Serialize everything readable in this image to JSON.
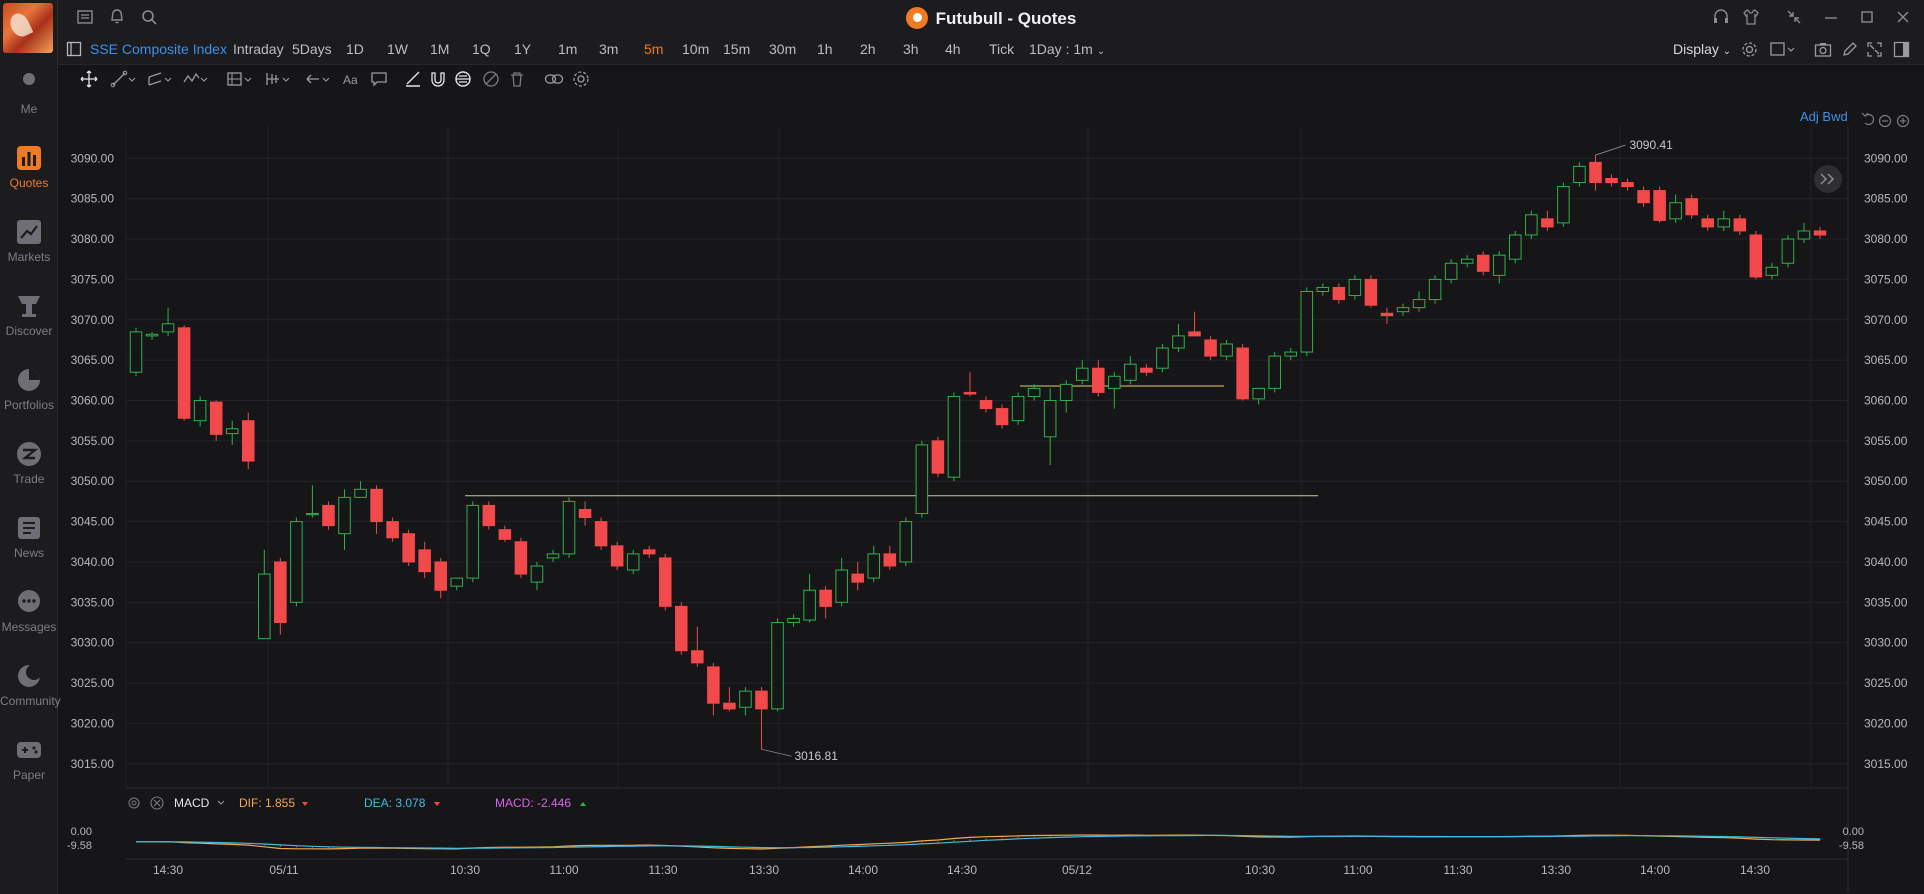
{
  "window": {
    "title": "Futubull - Quotes"
  },
  "sidebar": {
    "items": [
      {
        "label": "Me",
        "icon": "person-icon"
      },
      {
        "label": "Quotes",
        "icon": "bar-chart-icon",
        "active": true
      },
      {
        "label": "Markets",
        "icon": "trend-chart-icon"
      },
      {
        "label": "Discover",
        "icon": "telescope-icon"
      },
      {
        "label": "Portfolios",
        "icon": "pie-chart-icon"
      },
      {
        "label": "Trade",
        "icon": "trade-icon"
      },
      {
        "label": "News",
        "icon": "news-icon"
      },
      {
        "label": "Messages",
        "icon": "chat-icon"
      },
      {
        "label": "Community",
        "icon": "moon-icon"
      },
      {
        "label": "Paper",
        "icon": "gamepad-icon"
      }
    ]
  },
  "toolbar": {
    "symbol": "SSE Composite Index",
    "timeframes": [
      "Intraday",
      "5Days",
      "1D",
      "1W",
      "1M",
      "1Q",
      "1Y",
      "1m",
      "3m",
      "5m",
      "10m",
      "15m",
      "30m",
      "1h",
      "2h",
      "3h",
      "4h",
      "Tick"
    ],
    "active_timeframe": "5m",
    "range_select": "1Day : 1m",
    "display_label": "Display"
  },
  "chart": {
    "adj_label": "Adj Bwd",
    "price_ticks": [
      "3090.00",
      "3085.00",
      "3080.00",
      "3075.00",
      "3070.00",
      "3065.00",
      "3060.00",
      "3055.00",
      "3050.00",
      "3045.00",
      "3040.00",
      "3035.00",
      "3030.00",
      "3025.00",
      "3020.00",
      "3015.00"
    ],
    "high_label": "3090.41",
    "low_label": "3016.81",
    "time_labels": [
      "14:30",
      "05/11",
      "10:30",
      "11:00",
      "11:30",
      "13:30",
      "14:00",
      "14:30",
      "05/12",
      "10:30",
      "11:00",
      "11:30",
      "13:30",
      "14:00",
      "14:30"
    ],
    "colors": {
      "up": "#2fb14b",
      "down": "#f2494a",
      "bg": "#161618",
      "grid": "#232327",
      "axis_text": "#b8b8bc",
      "hline1": "#c8c8a8",
      "hline2": "#e6d24a"
    }
  },
  "chart_data": {
    "type": "candlestick",
    "title": "",
    "ylim": [
      3012,
      3094
    ],
    "candles": [
      {
        "o": 3063.5,
        "h": 3069.0,
        "l": 3063.0,
        "c": 3068.5
      },
      {
        "o": 3068.0,
        "h": 3068.5,
        "l": 3067.5,
        "c": 3068.2
      },
      {
        "o": 3068.5,
        "h": 3071.5,
        "l": 3068.0,
        "c": 3069.5
      },
      {
        "o": 3069.0,
        "h": 3069.3,
        "l": 3057.5,
        "c": 3057.8
      },
      {
        "o": 3057.5,
        "h": 3060.5,
        "l": 3056.8,
        "c": 3060.0
      },
      {
        "o": 3059.8,
        "h": 3060.0,
        "l": 3055.0,
        "c": 3055.8
      },
      {
        "o": 3055.9,
        "h": 3057.5,
        "l": 3054.5,
        "c": 3056.5
      },
      {
        "o": 3057.5,
        "h": 3058.5,
        "l": 3051.5,
        "c": 3052.5
      },
      {
        "o": 3030.5,
        "h": 3041.5,
        "l": 3031.0,
        "c": 3038.5
      },
      {
        "o": 3040.0,
        "h": 3040.5,
        "l": 3031.0,
        "c": 3032.5
      },
      {
        "o": 3035.0,
        "h": 3045.5,
        "l": 3034.5,
        "c": 3045.0
      },
      {
        "o": 3046.0,
        "h": 3049.5,
        "l": 3045.5,
        "c": 3046.0
      },
      {
        "o": 3047.0,
        "h": 3047.5,
        "l": 3044.0,
        "c": 3044.5
      },
      {
        "o": 3043.5,
        "h": 3049.0,
        "l": 3041.5,
        "c": 3048.0
      },
      {
        "o": 3048.0,
        "h": 3050.0,
        "l": 3048.0,
        "c": 3049.0
      },
      {
        "o": 3049.0,
        "h": 3049.5,
        "l": 3043.5,
        "c": 3045.0
      },
      {
        "o": 3045.0,
        "h": 3045.5,
        "l": 3042.5,
        "c": 3043.0
      },
      {
        "o": 3043.5,
        "h": 3044.0,
        "l": 3039.5,
        "c": 3040.0
      },
      {
        "o": 3041.5,
        "h": 3042.5,
        "l": 3038.0,
        "c": 3038.8
      },
      {
        "o": 3040.0,
        "h": 3040.5,
        "l": 3035.5,
        "c": 3036.5
      },
      {
        "o": 3037.0,
        "h": 3038.0,
        "l": 3036.5,
        "c": 3038.0
      },
      {
        "o": 3038.0,
        "h": 3047.5,
        "l": 3037.5,
        "c": 3047.0
      },
      {
        "o": 3047.0,
        "h": 3047.5,
        "l": 3044.0,
        "c": 3044.5
      },
      {
        "o": 3044.0,
        "h": 3044.5,
        "l": 3042.5,
        "c": 3042.8
      },
      {
        "o": 3042.5,
        "h": 3043.0,
        "l": 3038.0,
        "c": 3038.5
      },
      {
        "o": 3037.5,
        "h": 3040.0,
        "l": 3036.5,
        "c": 3039.5
      },
      {
        "o": 3040.5,
        "h": 3041.5,
        "l": 3040.0,
        "c": 3041.0
      },
      {
        "o": 3041.0,
        "h": 3048.0,
        "l": 3040.5,
        "c": 3047.5
      },
      {
        "o": 3046.5,
        "h": 3047.5,
        "l": 3044.5,
        "c": 3045.5
      },
      {
        "o": 3045.0,
        "h": 3045.5,
        "l": 3041.5,
        "c": 3042.0
      },
      {
        "o": 3042.0,
        "h": 3042.5,
        "l": 3039.0,
        "c": 3039.5
      },
      {
        "o": 3039.0,
        "h": 3041.5,
        "l": 3038.5,
        "c": 3041.0
      },
      {
        "o": 3041.5,
        "h": 3042.0,
        "l": 3040.5,
        "c": 3041.0
      },
      {
        "o": 3040.5,
        "h": 3041.0,
        "l": 3034.0,
        "c": 3034.5
      },
      {
        "o": 3034.5,
        "h": 3035.0,
        "l": 3028.5,
        "c": 3029.0
      },
      {
        "o": 3029.0,
        "h": 3032.0,
        "l": 3027.0,
        "c": 3027.5
      },
      {
        "o": 3027.0,
        "h": 3027.5,
        "l": 3021.0,
        "c": 3022.5
      },
      {
        "o": 3022.5,
        "h": 3024.5,
        "l": 3021.5,
        "c": 3021.8
      },
      {
        "o": 3022.0,
        "h": 3024.5,
        "l": 3021.0,
        "c": 3024.0
      },
      {
        "o": 3024.0,
        "h": 3024.5,
        "l": 3016.8,
        "c": 3021.8
      },
      {
        "o": 3021.8,
        "h": 3033.0,
        "l": 3021.5,
        "c": 3032.5
      },
      {
        "o": 3032.5,
        "h": 3033.5,
        "l": 3032.0,
        "c": 3033.0
      },
      {
        "o": 3032.8,
        "h": 3038.5,
        "l": 3032.5,
        "c": 3036.5
      },
      {
        "o": 3036.5,
        "h": 3037.0,
        "l": 3033.0,
        "c": 3034.5
      },
      {
        "o": 3035.0,
        "h": 3040.5,
        "l": 3034.5,
        "c": 3039.0
      },
      {
        "o": 3038.5,
        "h": 3040.0,
        "l": 3036.5,
        "c": 3037.5
      },
      {
        "o": 3038.0,
        "h": 3042.0,
        "l": 3037.5,
        "c": 3041.0
      },
      {
        "o": 3041.0,
        "h": 3042.0,
        "l": 3039.0,
        "c": 3039.5
      },
      {
        "o": 3040.0,
        "h": 3045.5,
        "l": 3039.5,
        "c": 3045.0
      },
      {
        "o": 3046.0,
        "h": 3055.0,
        "l": 3045.5,
        "c": 3054.5
      },
      {
        "o": 3055.0,
        "h": 3055.5,
        "l": 3050.5,
        "c": 3051.0
      },
      {
        "o": 3050.5,
        "h": 3061.0,
        "l": 3050.0,
        "c": 3060.5
      },
      {
        "o": 3061.0,
        "h": 3063.5,
        "l": 3060.5,
        "c": 3060.8
      },
      {
        "o": 3060.0,
        "h": 3060.5,
        "l": 3058.5,
        "c": 3059.0
      },
      {
        "o": 3059.0,
        "h": 3059.5,
        "l": 3056.5,
        "c": 3057.0
      },
      {
        "o": 3057.5,
        "h": 3061.0,
        "l": 3057.0,
        "c": 3060.5
      },
      {
        "o": 3060.5,
        "h": 3062.0,
        "l": 3060.0,
        "c": 3061.5
      },
      {
        "o": 3055.5,
        "h": 3061.5,
        "l": 3052.0,
        "c": 3060.0
      },
      {
        "o": 3060.0,
        "h": 3062.5,
        "l": 3058.5,
        "c": 3062.0
      },
      {
        "o": 3062.5,
        "h": 3065.0,
        "l": 3062.0,
        "c": 3064.0
      },
      {
        "o": 3064.0,
        "h": 3065.0,
        "l": 3060.5,
        "c": 3061.0
      },
      {
        "o": 3061.5,
        "h": 3063.5,
        "l": 3059.0,
        "c": 3063.0
      },
      {
        "o": 3062.5,
        "h": 3065.5,
        "l": 3062.0,
        "c": 3064.5
      },
      {
        "o": 3064.0,
        "h": 3064.5,
        "l": 3063.0,
        "c": 3063.5
      },
      {
        "o": 3064.0,
        "h": 3067.0,
        "l": 3063.5,
        "c": 3066.5
      },
      {
        "o": 3066.5,
        "h": 3069.5,
        "l": 3066.0,
        "c": 3068.0
      },
      {
        "o": 3068.5,
        "h": 3071.0,
        "l": 3068.0,
        "c": 3068.0
      },
      {
        "o": 3067.5,
        "h": 3068.0,
        "l": 3065.0,
        "c": 3065.5
      },
      {
        "o": 3065.5,
        "h": 3067.5,
        "l": 3065.0,
        "c": 3067.0
      },
      {
        "o": 3066.5,
        "h": 3067.0,
        "l": 3060.0,
        "c": 3060.2
      },
      {
        "o": 3060.2,
        "h": 3061.5,
        "l": 3059.5,
        "c": 3061.5
      },
      {
        "o": 3061.5,
        "h": 3066.0,
        "l": 3061.0,
        "c": 3065.5
      },
      {
        "o": 3065.5,
        "h": 3066.5,
        "l": 3065.0,
        "c": 3066.0
      },
      {
        "o": 3066.0,
        "h": 3074.0,
        "l": 3065.5,
        "c": 3073.5
      },
      {
        "o": 3073.5,
        "h": 3074.5,
        "l": 3073.0,
        "c": 3074.0
      },
      {
        "o": 3074.0,
        "h": 3074.5,
        "l": 3072.0,
        "c": 3072.5
      },
      {
        "o": 3073.0,
        "h": 3075.5,
        "l": 3072.5,
        "c": 3075.0
      },
      {
        "o": 3075.0,
        "h": 3075.5,
        "l": 3071.5,
        "c": 3071.8
      },
      {
        "o": 3070.8,
        "h": 3071.5,
        "l": 3069.5,
        "c": 3070.5
      },
      {
        "o": 3071.0,
        "h": 3072.0,
        "l": 3070.5,
        "c": 3071.5
      },
      {
        "o": 3071.5,
        "h": 3073.5,
        "l": 3071.0,
        "c": 3072.5
      },
      {
        "o": 3072.5,
        "h": 3075.5,
        "l": 3072.0,
        "c": 3075.0
      },
      {
        "o": 3075.0,
        "h": 3077.5,
        "l": 3074.5,
        "c": 3077.0
      },
      {
        "o": 3077.0,
        "h": 3078.0,
        "l": 3076.5,
        "c": 3077.5
      },
      {
        "o": 3078.0,
        "h": 3078.5,
        "l": 3075.5,
        "c": 3076.0
      },
      {
        "o": 3075.5,
        "h": 3078.5,
        "l": 3074.5,
        "c": 3078.0
      },
      {
        "o": 3077.5,
        "h": 3081.0,
        "l": 3077.0,
        "c": 3080.5
      },
      {
        "o": 3080.5,
        "h": 3083.5,
        "l": 3080.0,
        "c": 3083.0
      },
      {
        "o": 3082.5,
        "h": 3083.5,
        "l": 3081.0,
        "c": 3081.5
      },
      {
        "o": 3082.0,
        "h": 3087.0,
        "l": 3081.5,
        "c": 3086.5
      },
      {
        "o": 3087.0,
        "h": 3089.5,
        "l": 3086.5,
        "c": 3089.0
      },
      {
        "o": 3089.5,
        "h": 3090.4,
        "l": 3086.0,
        "c": 3087.0
      },
      {
        "o": 3087.5,
        "h": 3088.0,
        "l": 3086.5,
        "c": 3087.0
      },
      {
        "o": 3087.0,
        "h": 3087.5,
        "l": 3086.0,
        "c": 3086.5
      },
      {
        "o": 3086.0,
        "h": 3086.5,
        "l": 3084.0,
        "c": 3084.5
      },
      {
        "o": 3086.0,
        "h": 3086.5,
        "l": 3082.0,
        "c": 3082.3
      },
      {
        "o": 3082.5,
        "h": 3085.5,
        "l": 3082.0,
        "c": 3084.5
      },
      {
        "o": 3085.0,
        "h": 3085.5,
        "l": 3082.5,
        "c": 3083.0
      },
      {
        "o": 3082.5,
        "h": 3083.0,
        "l": 3081.0,
        "c": 3081.5
      },
      {
        "o": 3081.5,
        "h": 3083.5,
        "l": 3081.0,
        "c": 3082.5
      },
      {
        "o": 3082.5,
        "h": 3083.0,
        "l": 3080.5,
        "c": 3081.0
      },
      {
        "o": 3080.5,
        "h": 3081.0,
        "l": 3075.0,
        "c": 3075.3
      },
      {
        "o": 3075.5,
        "h": 3077.0,
        "l": 3075.0,
        "c": 3076.5
      },
      {
        "o": 3077.0,
        "h": 3080.5,
        "l": 3076.5,
        "c": 3080.0
      },
      {
        "o": 3080.0,
        "h": 3082.0,
        "l": 3079.5,
        "c": 3081.0
      },
      {
        "o": 3081.0,
        "h": 3081.5,
        "l": 3080.0,
        "c": 3080.5
      }
    ],
    "hlines": [
      {
        "y": 3048.2
      },
      {
        "y": 3061.8
      }
    ]
  },
  "macd": {
    "label": "MACD",
    "dif_label": "DIF: 1.855",
    "dea_label": "DEA: 3.078",
    "macd_label": "MACD: -2.446",
    "axis_top": "0.00",
    "axis_bottom": "-9.58"
  }
}
